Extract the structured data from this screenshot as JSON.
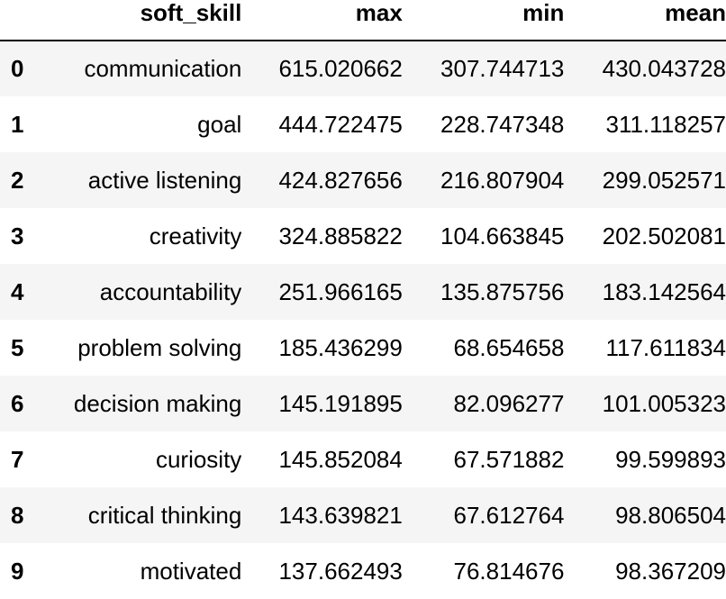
{
  "table": {
    "columns": [
      "soft_skill",
      "max",
      "min",
      "mean"
    ],
    "index_header": "",
    "rows": [
      {
        "index": "0",
        "soft_skill": "communication",
        "max": "615.020662",
        "min": "307.744713",
        "mean": "430.043728"
      },
      {
        "index": "1",
        "soft_skill": "goal",
        "max": "444.722475",
        "min": "228.747348",
        "mean": "311.118257"
      },
      {
        "index": "2",
        "soft_skill": "active listening",
        "max": "424.827656",
        "min": "216.807904",
        "mean": "299.052571"
      },
      {
        "index": "3",
        "soft_skill": "creativity",
        "max": "324.885822",
        "min": "104.663845",
        "mean": "202.502081"
      },
      {
        "index": "4",
        "soft_skill": "accountability",
        "max": "251.966165",
        "min": "135.875756",
        "mean": "183.142564"
      },
      {
        "index": "5",
        "soft_skill": "problem solving",
        "max": "185.436299",
        "min": "68.654658",
        "mean": "117.611834"
      },
      {
        "index": "6",
        "soft_skill": "decision making",
        "max": "145.191895",
        "min": "82.096277",
        "mean": "101.005323"
      },
      {
        "index": "7",
        "soft_skill": "curiosity",
        "max": "145.852084",
        "min": "67.571882",
        "mean": "99.599893"
      },
      {
        "index": "8",
        "soft_skill": "critical thinking",
        "max": "143.639821",
        "min": "67.612764",
        "mean": "98.806504"
      },
      {
        "index": "9",
        "soft_skill": "motivated",
        "max": "137.662493",
        "min": "76.814676",
        "mean": "98.367209"
      }
    ]
  },
  "colors": {
    "stripe": "#f5f5f5",
    "background": "#ffffff",
    "text": "#000000"
  }
}
